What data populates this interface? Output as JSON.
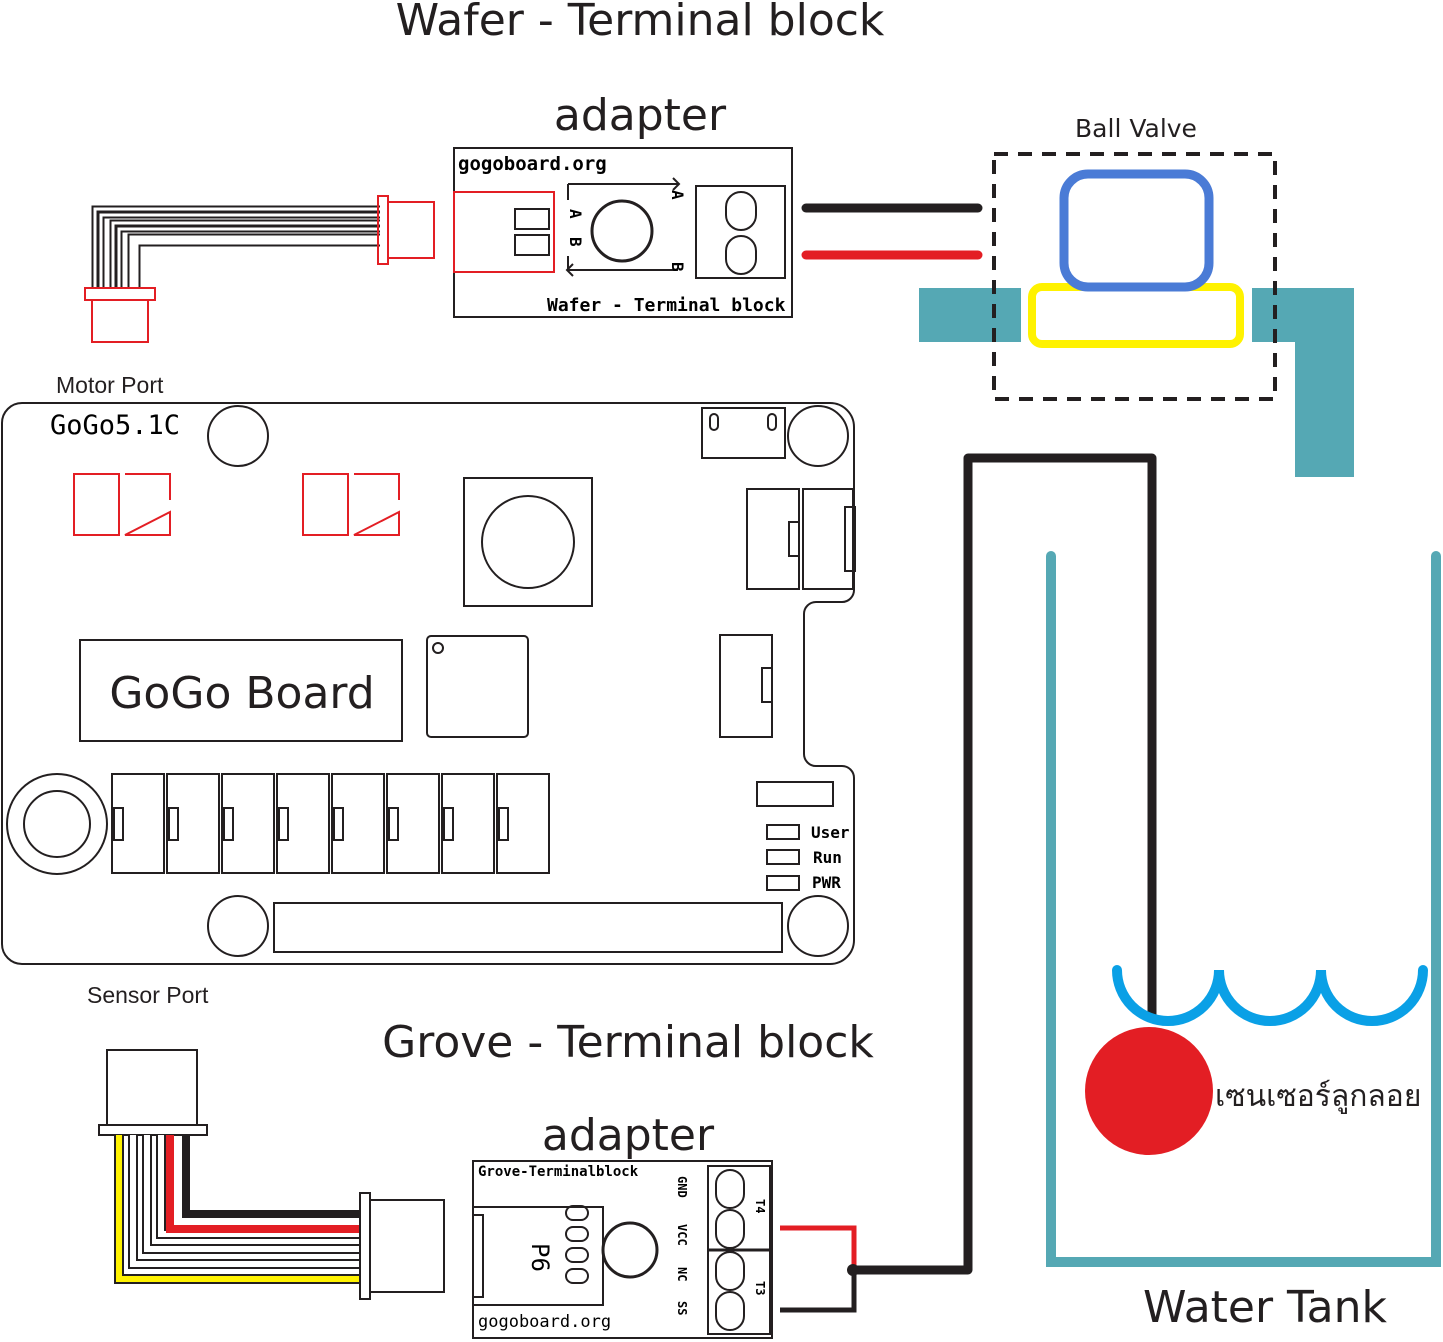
{
  "labels": {
    "wafer_title": "Wafer - Terminal block",
    "wafer_adapter": "adapter",
    "ball_valve": "Ball Valve",
    "motor_port": "Motor Port",
    "sensor_port": "Sensor Port",
    "grove_title": "Grove - Terminal block",
    "grove_adapter": "adapter",
    "water_tank": "Water Tank",
    "float_sensor": "เซนเซอร์ลูกลอย"
  },
  "wafer_board": {
    "site": "gogoboard.org",
    "name": "Wafer - Terminal block",
    "pin_a": "A",
    "pin_b": "B"
  },
  "gogo_board": {
    "model": "GoGo5.1C",
    "name": "GoGo Board",
    "led_user": "User",
    "led_run": "Run",
    "led_pwr": "PWR"
  },
  "grove_board": {
    "name": "Grove-Terminalblock",
    "port": "P6",
    "site": "gogoboard.org",
    "pin_gnd": "GND",
    "pin_vcc": "VCC",
    "pin_nc": "NC",
    "pin_ss": "SS",
    "term_t4": "T4",
    "term_t3": "T3"
  },
  "colors": {
    "wire_black": "#231f20",
    "wire_red": "#e31e24",
    "connector_red": "#e31e24",
    "valve_blue": "#4a7bd6",
    "valve_yellow": "#fff200",
    "pipe_teal": "#55a8b4",
    "tank_teal": "#55a8b4",
    "water_blue": "#0aa0e6",
    "float_red": "#e31e24"
  }
}
